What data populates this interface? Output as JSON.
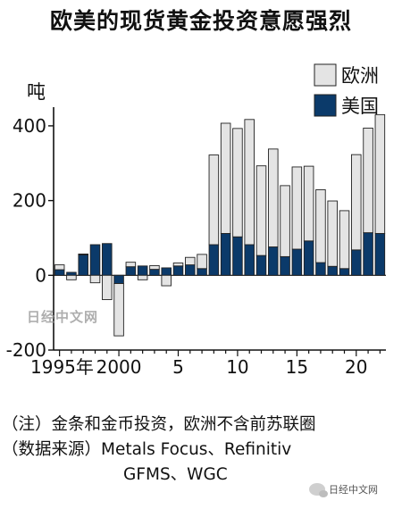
{
  "chart_data": {
    "type": "bar",
    "stacked": true,
    "title": "欧美的现货黄金投资意愿强烈",
    "ylabel": "吨",
    "ylim": [
      -200,
      450
    ],
    "yticks": [
      -200,
      0,
      200,
      400
    ],
    "x": [
      1995,
      1996,
      1997,
      1998,
      1999,
      2000,
      2001,
      2002,
      2003,
      2004,
      2005,
      2006,
      2007,
      2008,
      2009,
      2010,
      2011,
      2012,
      2013,
      2014,
      2015,
      2016,
      2017,
      2018,
      2019,
      2020,
      2021,
      2022
    ],
    "xtick_labels": [
      {
        "year": 1995,
        "label": "1995年"
      },
      {
        "year": 2000,
        "label": "2000"
      },
      {
        "year": 2005,
        "label": "5"
      },
      {
        "year": 2010,
        "label": "10"
      },
      {
        "year": 2015,
        "label": "15"
      },
      {
        "year": 2020,
        "label": "20"
      }
    ],
    "legend_position": "top-right",
    "series": [
      {
        "name": "欧洲",
        "color": "#e4e4e4",
        "values": [
          13,
          -12,
          2,
          -20,
          -65,
          -140,
          12,
          -12,
          10,
          -28,
          8,
          20,
          38,
          240,
          295,
          290,
          335,
          240,
          262,
          190,
          220,
          200,
          195,
          175,
          155,
          255,
          280,
          318
        ]
      },
      {
        "name": "美国",
        "color": "#0b3a6a",
        "values": [
          15,
          8,
          55,
          82,
          85,
          -22,
          23,
          25,
          16,
          20,
          25,
          28,
          18,
          82,
          112,
          103,
          82,
          53,
          76,
          50,
          70,
          92,
          34,
          24,
          18,
          68,
          114,
          112
        ]
      }
    ]
  },
  "notes": {
    "line1": "（注）金条和金币投资，欧洲不含前苏联圈",
    "line2": "（数据来源）Metals Focus、Refinitiv",
    "line3": "GFMS、WGC"
  },
  "watermarks": {
    "center": "日经中文网",
    "corner": "日经中文网",
    "corner_icon": "wechat-icon"
  }
}
